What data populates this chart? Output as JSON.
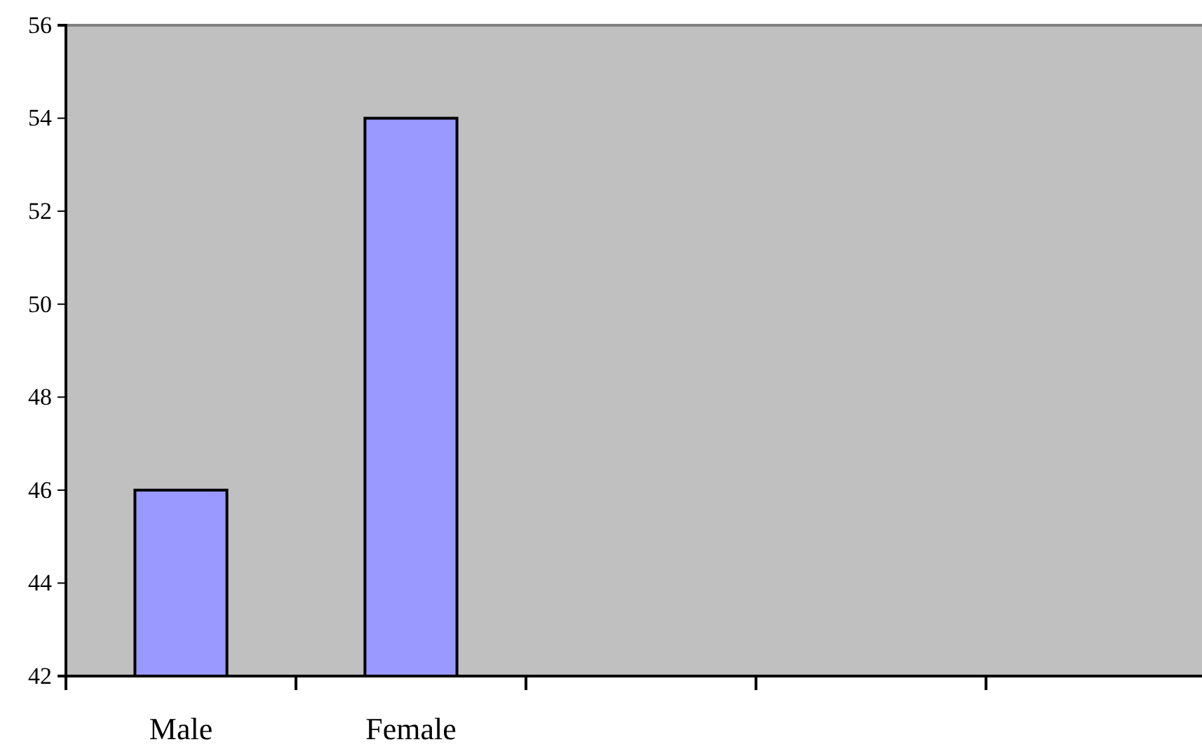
{
  "chart_data": {
    "type": "bar",
    "categories": [
      "Male",
      "Female",
      null,
      null,
      null
    ],
    "values": [
      46,
      54,
      null,
      null,
      null
    ],
    "color": "#9999ff",
    "ylim": [
      42,
      56
    ],
    "yticks": [
      42,
      44,
      46,
      48,
      50,
      52,
      54,
      56
    ],
    "grid": false
  }
}
